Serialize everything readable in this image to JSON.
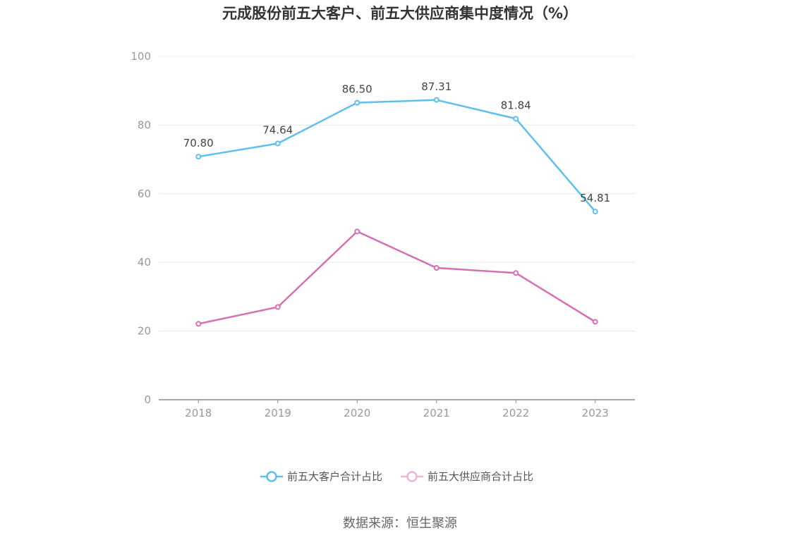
{
  "chart_data": {
    "type": "line",
    "title": "元成股份前五大客户、前五大供应商集中度情况（%）",
    "categories": [
      "2018",
      "2019",
      "2020",
      "2021",
      "2022",
      "2023"
    ],
    "ylim": [
      0,
      100
    ],
    "yticks": [
      0,
      20,
      40,
      60,
      80,
      100
    ],
    "grid": true,
    "legend_position": "bottom",
    "series": [
      {
        "name": "前五大客户合计占比",
        "color": "#5bc0f0",
        "values": [
          70.8,
          74.64,
          86.5,
          87.31,
          81.84,
          54.81
        ],
        "data_labels": [
          "70.80",
          "74.64",
          "86.50",
          "87.31",
          "81.84",
          "54.81"
        ]
      },
      {
        "name": "前五大供应商合计占比",
        "color": "#d66fb4",
        "legend_color": "#eeb4d9",
        "values": [
          22.1,
          27.0,
          49.0,
          38.4,
          36.9,
          22.7
        ],
        "data_labels": []
      }
    ],
    "source": "数据来源：恒生聚源"
  }
}
